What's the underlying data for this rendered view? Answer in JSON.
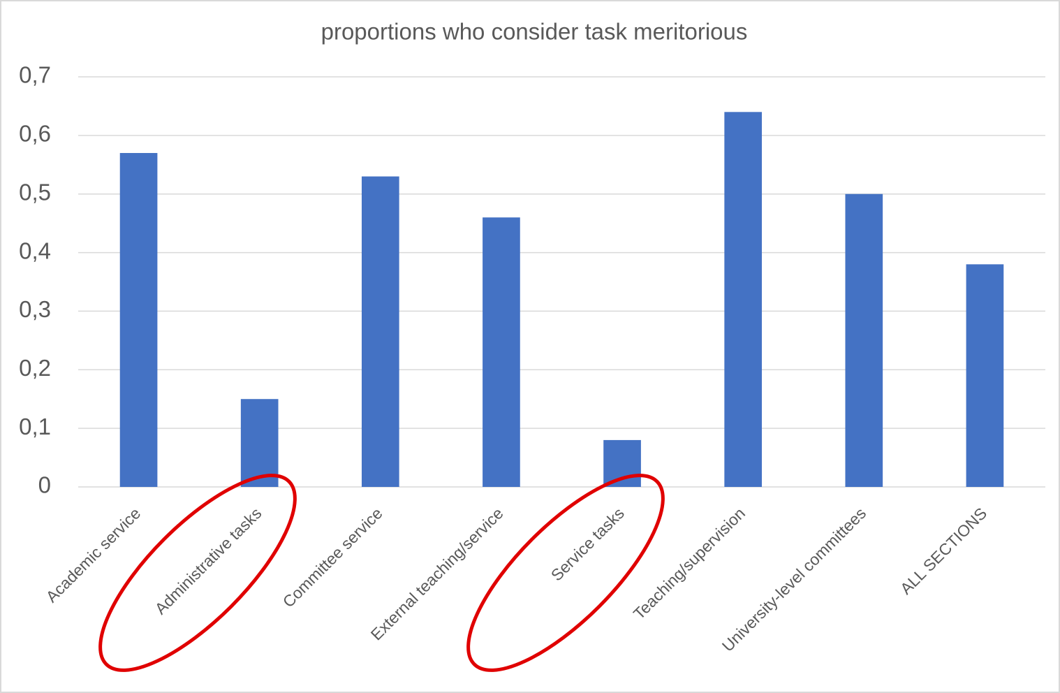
{
  "chart_data": {
    "type": "bar",
    "title": "proportions who consider task meritorious",
    "categories": [
      "Academic service",
      "Administrative tasks",
      "Committee service",
      "External teaching/service",
      "Service tasks",
      "Teaching/supervision",
      "University-level committees",
      "ALL SECTIONS"
    ],
    "values": [
      0.57,
      0.15,
      0.53,
      0.46,
      0.08,
      0.64,
      0.5,
      0.38
    ],
    "color": "#4472c4",
    "ylim": [
      0,
      0.7
    ],
    "yticks": [
      0,
      {
        "value": 0.1,
        "label": "0,1"
      },
      {
        "value": 0.2,
        "label": "0,2"
      },
      {
        "value": 0.3,
        "label": "0,3"
      },
      {
        "value": 0.4,
        "label": "0,4"
      },
      {
        "value": 0.5,
        "label": "0,5"
      },
      {
        "value": 0.6,
        "label": "0,6"
      },
      {
        "value": 0.7,
        "label": "0,7"
      }
    ],
    "grid": true
  }
}
